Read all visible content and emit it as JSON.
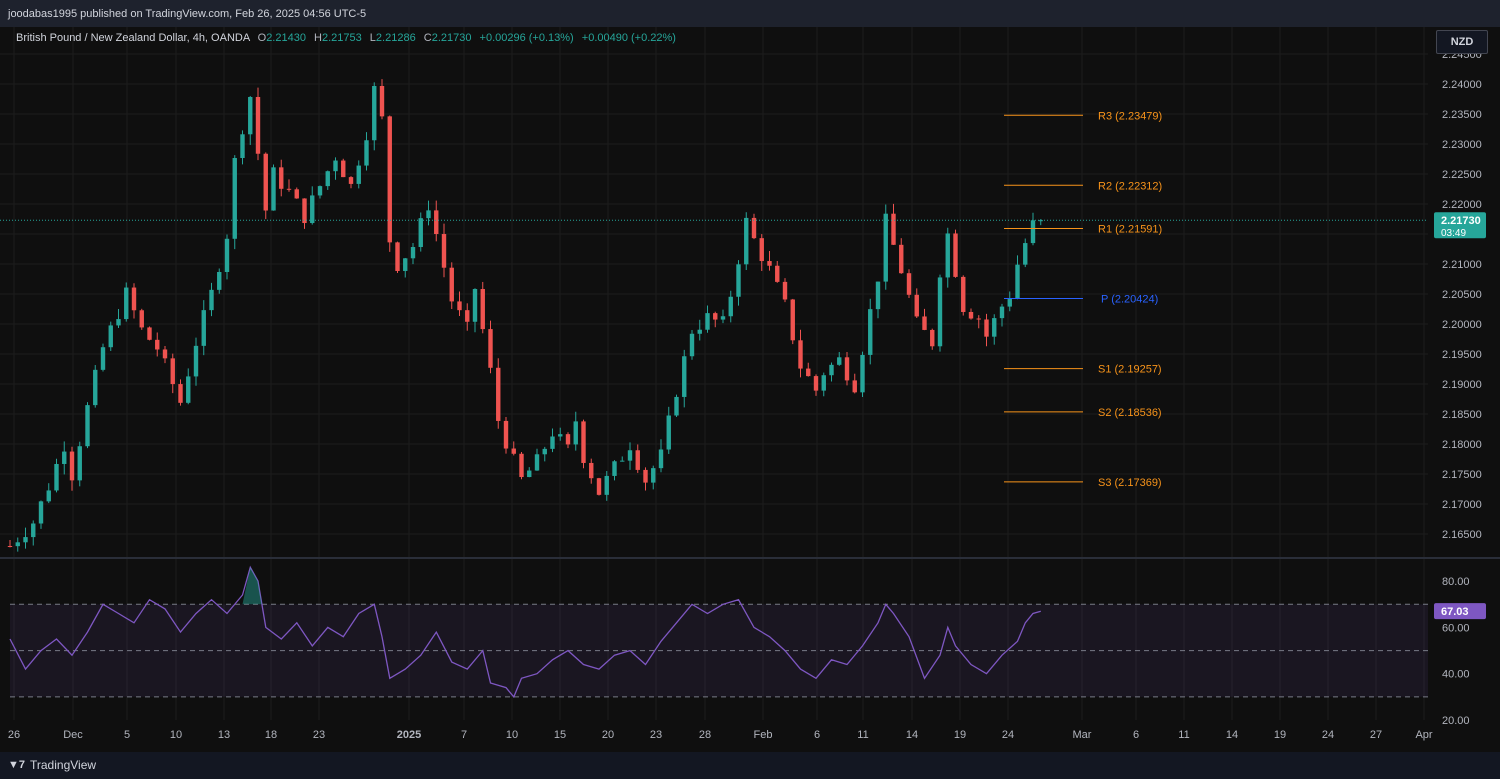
{
  "header": {
    "publisher_line": "joodabas1995 published on TradingView.com, Feb 26, 2025 04:56 UTC-5"
  },
  "legend": {
    "symbol": "British Pound / New Zealand Dollar, 4h, OANDA",
    "o_label": "O",
    "o": "2.21430",
    "h_label": "H",
    "h": "2.21753",
    "l_label": "L",
    "l": "2.21286",
    "c_label": "C",
    "c": "2.21730",
    "chg1": "+0.00296 (+0.13%)",
    "chg2": "+0.00490 (+0.22%)"
  },
  "currency_button": "NZD",
  "footer": {
    "brand": "TradingView"
  },
  "colors": {
    "up": "#26a69a",
    "down": "#ef5350",
    "pivot_sr": "#f7931a",
    "pivot_p": "#2962ff",
    "rsi": "#7e57c2"
  },
  "chart_data": [
    {
      "type": "candlestick",
      "ylim": [
        2.161,
        2.248
      ],
      "y_ticks": [
        "2.16500",
        "2.17000",
        "2.17500",
        "2.18000",
        "2.18500",
        "2.19000",
        "2.19500",
        "2.20000",
        "2.20500",
        "2.21000",
        "2.21500",
        "2.22000",
        "2.22500",
        "2.23000",
        "2.23500",
        "2.24000",
        "2.24500"
      ],
      "last_price": "2.21730",
      "countdown": "03:49",
      "x_ticks": [
        "26",
        "Dec",
        "5",
        "10",
        "13",
        "18",
        "23",
        "2025",
        "7",
        "10",
        "15",
        "20",
        "23",
        "28",
        "Feb",
        "6",
        "11",
        "14",
        "19",
        "24",
        "Mar",
        "6",
        "11",
        "14",
        "19",
        "24",
        "27",
        "Apr"
      ],
      "price_path": [
        [
          0,
          2.163
        ],
        [
          3,
          2.167
        ],
        [
          5,
          2.173
        ],
        [
          7,
          2.18
        ],
        [
          8,
          2.175
        ],
        [
          10,
          2.186
        ],
        [
          12,
          2.196
        ],
        [
          14,
          2.202
        ],
        [
          15,
          2.205
        ],
        [
          17,
          2.199
        ],
        [
          19,
          2.196
        ],
        [
          21,
          2.19
        ],
        [
          22,
          2.187
        ],
        [
          24,
          2.197
        ],
        [
          26,
          2.205
        ],
        [
          28,
          2.215
        ],
        [
          29,
          2.227
        ],
        [
          30,
          2.233
        ],
        [
          31,
          2.238
        ],
        [
          33,
          2.219
        ],
        [
          34,
          2.225
        ],
        [
          36,
          2.222
        ],
        [
          38,
          2.218
        ],
        [
          40,
          2.223
        ],
        [
          42,
          2.228
        ],
        [
          44,
          2.223
        ],
        [
          46,
          2.232
        ],
        [
          47,
          2.239
        ],
        [
          48,
          2.234
        ],
        [
          49,
          2.214
        ],
        [
          50,
          2.21
        ],
        [
          52,
          2.213
        ],
        [
          54,
          2.22
        ],
        [
          55,
          2.215
        ],
        [
          57,
          2.204
        ],
        [
          59,
          2.199
        ],
        [
          60,
          2.206
        ],
        [
          62,
          2.192
        ],
        [
          63,
          2.184
        ],
        [
          65,
          2.177
        ],
        [
          66,
          2.174
        ],
        [
          68,
          2.177
        ],
        [
          70,
          2.182
        ],
        [
          72,
          2.179
        ],
        [
          73,
          2.184
        ],
        [
          74,
          2.178
        ],
        [
          76,
          2.172
        ],
        [
          78,
          2.176
        ],
        [
          80,
          2.18
        ],
        [
          82,
          2.174
        ],
        [
          84,
          2.178
        ],
        [
          86,
          2.189
        ],
        [
          88,
          2.199
        ],
        [
          90,
          2.201
        ],
        [
          92,
          2.2
        ],
        [
          93,
          2.205
        ],
        [
          95,
          2.217
        ],
        [
          96,
          2.214
        ],
        [
          98,
          2.209
        ],
        [
          100,
          2.203
        ],
        [
          102,
          2.193
        ],
        [
          104,
          2.189
        ],
        [
          105,
          2.192
        ],
        [
          107,
          2.194
        ],
        [
          109,
          2.19
        ],
        [
          110,
          2.196
        ],
        [
          112,
          2.208
        ],
        [
          113,
          2.217
        ],
        [
          114,
          2.213
        ],
        [
          115,
          2.209
        ],
        [
          117,
          2.2
        ],
        [
          119,
          2.197
        ],
        [
          120,
          2.209
        ],
        [
          121,
          2.215
        ],
        [
          122,
          2.209
        ],
        [
          123,
          2.203
        ],
        [
          125,
          2.201
        ],
        [
          126,
          2.198
        ],
        [
          128,
          2.203
        ],
        [
          129,
          2.205
        ],
        [
          130,
          2.21
        ],
        [
          131,
          2.2135
        ],
        [
          132,
          2.2165
        ],
        [
          133,
          2.2173
        ]
      ],
      "pivots": [
        {
          "label": "R3",
          "value": 2.23479,
          "text": "R3 (2.23479)"
        },
        {
          "label": "R2",
          "value": 2.22312,
          "text": "R2 (2.22312)"
        },
        {
          "label": "R1",
          "value": 2.21591,
          "text": "R1 (2.21591)"
        },
        {
          "label": "P",
          "value": 2.20424,
          "text": "P (2.20424)"
        },
        {
          "label": "S1",
          "value": 2.19257,
          "text": "S1 (2.19257)"
        },
        {
          "label": "S2",
          "value": 2.18536,
          "text": "S2 (2.18536)"
        },
        {
          "label": "S3",
          "value": 2.17369,
          "text": "S3 (2.17369)"
        }
      ]
    },
    {
      "type": "line",
      "ylim": [
        20,
        90
      ],
      "y_ticks": [
        "80.00",
        "60.00",
        "40.00",
        "20.00"
      ],
      "bands": [
        30,
        50,
        70
      ],
      "last_value": "67.03",
      "rsi_path": [
        [
          0,
          55
        ],
        [
          2,
          42
        ],
        [
          4,
          50
        ],
        [
          6,
          55
        ],
        [
          8,
          48
        ],
        [
          10,
          58
        ],
        [
          12,
          70
        ],
        [
          14,
          66
        ],
        [
          16,
          62
        ],
        [
          18,
          72
        ],
        [
          20,
          68
        ],
        [
          22,
          58
        ],
        [
          24,
          66
        ],
        [
          26,
          72
        ],
        [
          28,
          66
        ],
        [
          30,
          74
        ],
        [
          31,
          86
        ],
        [
          32,
          80
        ],
        [
          33,
          60
        ],
        [
          35,
          55
        ],
        [
          37,
          62
        ],
        [
          39,
          52
        ],
        [
          41,
          60
        ],
        [
          43,
          56
        ],
        [
          45,
          66
        ],
        [
          47,
          70
        ],
        [
          48,
          56
        ],
        [
          49,
          38
        ],
        [
          51,
          42
        ],
        [
          53,
          48
        ],
        [
          55,
          58
        ],
        [
          57,
          45
        ],
        [
          59,
          42
        ],
        [
          61,
          50
        ],
        [
          62,
          36
        ],
        [
          64,
          34
        ],
        [
          65,
          30
        ],
        [
          66,
          38
        ],
        [
          68,
          40
        ],
        [
          70,
          46
        ],
        [
          72,
          50
        ],
        [
          74,
          44
        ],
        [
          76,
          42
        ],
        [
          78,
          48
        ],
        [
          80,
          50
        ],
        [
          82,
          44
        ],
        [
          84,
          54
        ],
        [
          86,
          62
        ],
        [
          88,
          70
        ],
        [
          90,
          66
        ],
        [
          92,
          70
        ],
        [
          94,
          72
        ],
        [
          96,
          60
        ],
        [
          98,
          56
        ],
        [
          100,
          50
        ],
        [
          102,
          42
        ],
        [
          104,
          38
        ],
        [
          106,
          46
        ],
        [
          108,
          44
        ],
        [
          110,
          52
        ],
        [
          112,
          62
        ],
        [
          113,
          70
        ],
        [
          114,
          66
        ],
        [
          116,
          56
        ],
        [
          118,
          38
        ],
        [
          120,
          48
        ],
        [
          121,
          60
        ],
        [
          122,
          52
        ],
        [
          124,
          44
        ],
        [
          126,
          40
        ],
        [
          128,
          48
        ],
        [
          130,
          54
        ],
        [
          131,
          62
        ],
        [
          132,
          66
        ],
        [
          133,
          67.03
        ]
      ]
    }
  ]
}
